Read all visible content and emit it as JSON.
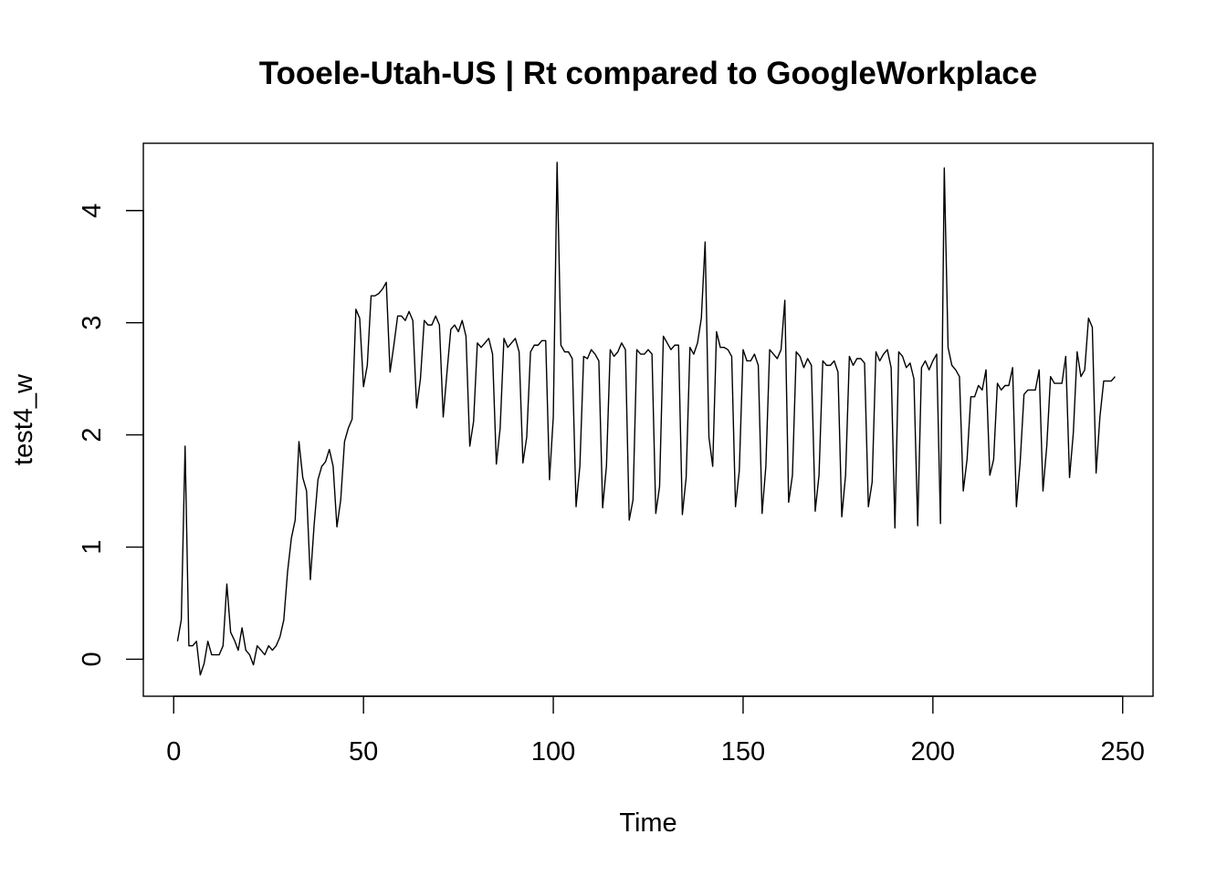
{
  "chart_data": {
    "type": "line",
    "title": "Tooele-Utah-US | Rt compared to GoogleWorkplace",
    "xlabel": "Time",
    "ylabel": "test4_w",
    "xlim": [
      -8,
      258
    ],
    "ylim": [
      -0.33,
      4.6
    ],
    "xticks": [
      0,
      50,
      100,
      150,
      200,
      250
    ],
    "yticks": [
      0,
      1,
      2,
      3,
      4
    ],
    "grid": false,
    "series": [
      {
        "x": [
          1,
          2,
          3,
          4,
          5,
          6,
          7,
          8,
          9,
          10,
          11,
          12,
          13,
          14,
          15,
          16,
          17,
          18,
          19,
          20,
          21,
          22,
          23,
          24,
          25,
          26,
          27,
          28,
          29,
          30,
          31,
          32,
          33,
          34,
          35,
          36,
          37,
          38,
          39,
          40,
          41,
          42,
          43,
          44,
          45,
          46,
          47,
          48,
          49,
          50,
          51,
          52,
          53,
          54,
          55,
          56,
          57,
          58,
          59,
          60,
          61,
          62,
          63,
          64,
          65,
          66,
          67,
          68,
          69,
          70,
          71,
          72,
          73,
          74,
          75,
          76,
          77,
          78,
          79,
          80,
          81,
          82,
          83,
          84,
          85,
          86,
          87,
          88,
          89,
          90,
          91,
          92,
          93,
          94,
          95,
          96,
          97,
          98,
          99,
          100,
          101,
          102,
          103,
          104,
          105,
          106,
          107,
          108,
          109,
          110,
          111,
          112,
          113,
          114,
          115,
          116,
          117,
          118,
          119,
          120,
          121,
          122,
          123,
          124,
          125,
          126,
          127,
          128,
          129,
          130,
          131,
          132,
          133,
          134,
          135,
          136,
          137,
          138,
          139,
          140,
          141,
          142,
          143,
          144,
          145,
          146,
          147,
          148,
          149,
          150,
          151,
          152,
          153,
          154,
          155,
          156,
          157,
          158,
          159,
          160,
          161,
          162,
          163,
          164,
          165,
          166,
          167,
          168,
          169,
          170,
          171,
          172,
          173,
          174,
          175,
          176,
          177,
          178,
          179,
          180,
          181,
          182,
          183,
          184,
          185,
          186,
          187,
          188,
          189,
          190,
          191,
          192,
          193,
          194,
          195,
          196,
          197,
          198,
          199,
          200,
          201,
          202,
          203,
          204,
          205,
          206,
          207,
          208,
          209,
          210,
          211,
          212,
          213,
          214,
          215,
          216,
          217,
          218,
          219,
          220,
          221,
          222,
          223,
          224,
          225,
          226,
          227,
          228,
          229,
          230,
          231,
          232,
          233,
          234,
          235,
          236,
          237,
          238,
          239,
          240,
          241,
          242,
          243,
          244,
          245,
          246,
          247,
          248
        ],
        "y": [
          0.16,
          0.35,
          1.9,
          0.12,
          0.12,
          0.16,
          -0.14,
          -0.04,
          0.16,
          0.04,
          0.04,
          0.04,
          0.12,
          0.67,
          0.24,
          0.17,
          0.08,
          0.28,
          0.08,
          0.04,
          -0.05,
          0.12,
          0.08,
          0.04,
          0.12,
          0.08,
          0.12,
          0.2,
          0.35,
          0.78,
          1.08,
          1.24,
          1.94,
          1.62,
          1.5,
          0.71,
          1.2,
          1.6,
          1.72,
          1.76,
          1.87,
          1.72,
          1.18,
          1.42,
          1.94,
          2.06,
          2.14,
          3.12,
          3.04,
          2.43,
          2.62,
          3.24,
          3.24,
          3.26,
          3.3,
          3.36,
          2.56,
          2.8,
          3.06,
          3.06,
          3.02,
          3.1,
          3.02,
          2.24,
          2.5,
          3.02,
          2.98,
          2.98,
          3.06,
          2.98,
          2.16,
          2.56,
          2.94,
          2.98,
          2.92,
          3.02,
          2.88,
          1.9,
          2.12,
          2.82,
          2.78,
          2.82,
          2.86,
          2.72,
          1.74,
          2.06,
          2.86,
          2.78,
          2.82,
          2.86,
          2.74,
          1.75,
          1.98,
          2.74,
          2.8,
          2.8,
          2.84,
          2.84,
          1.6,
          2.16,
          4.43,
          2.8,
          2.74,
          2.74,
          2.68,
          1.36,
          1.72,
          2.7,
          2.68,
          2.76,
          2.72,
          2.66,
          1.35,
          1.72,
          2.76,
          2.7,
          2.74,
          2.82,
          2.76,
          1.24,
          1.42,
          2.76,
          2.72,
          2.72,
          2.76,
          2.72,
          1.3,
          1.54,
          2.88,
          2.82,
          2.76,
          2.8,
          2.8,
          1.29,
          1.62,
          2.78,
          2.72,
          2.82,
          3.04,
          3.72,
          1.98,
          1.72,
          2.92,
          2.78,
          2.78,
          2.76,
          2.7,
          1.36,
          1.68,
          2.76,
          2.66,
          2.66,
          2.72,
          2.62,
          1.3,
          1.72,
          2.76,
          2.72,
          2.68,
          2.76,
          3.2,
          1.4,
          1.64,
          2.74,
          2.7,
          2.6,
          2.68,
          2.62,
          1.32,
          1.64,
          2.66,
          2.62,
          2.62,
          2.66,
          2.56,
          1.27,
          1.64,
          2.7,
          2.62,
          2.68,
          2.68,
          2.64,
          1.36,
          1.58,
          2.74,
          2.66,
          2.72,
          2.76,
          2.6,
          1.17,
          2.74,
          2.7,
          2.6,
          2.64,
          2.5,
          1.19,
          2.6,
          2.66,
          2.58,
          2.66,
          2.72,
          1.21,
          4.38,
          2.78,
          2.62,
          2.58,
          2.52,
          1.5,
          1.78,
          2.34,
          2.34,
          2.44,
          2.4,
          2.58,
          1.64,
          1.78,
          2.46,
          2.4,
          2.44,
          2.44,
          2.6,
          1.36,
          1.76,
          2.36,
          2.4,
          2.4,
          2.4,
          2.58,
          1.5,
          1.9,
          2.52,
          2.46,
          2.46,
          2.46,
          2.7,
          1.62,
          2.02,
          2.74,
          2.52,
          2.58,
          3.04,
          2.96,
          1.66,
          2.16,
          2.48,
          2.48,
          2.48,
          2.52
        ]
      }
    ]
  }
}
